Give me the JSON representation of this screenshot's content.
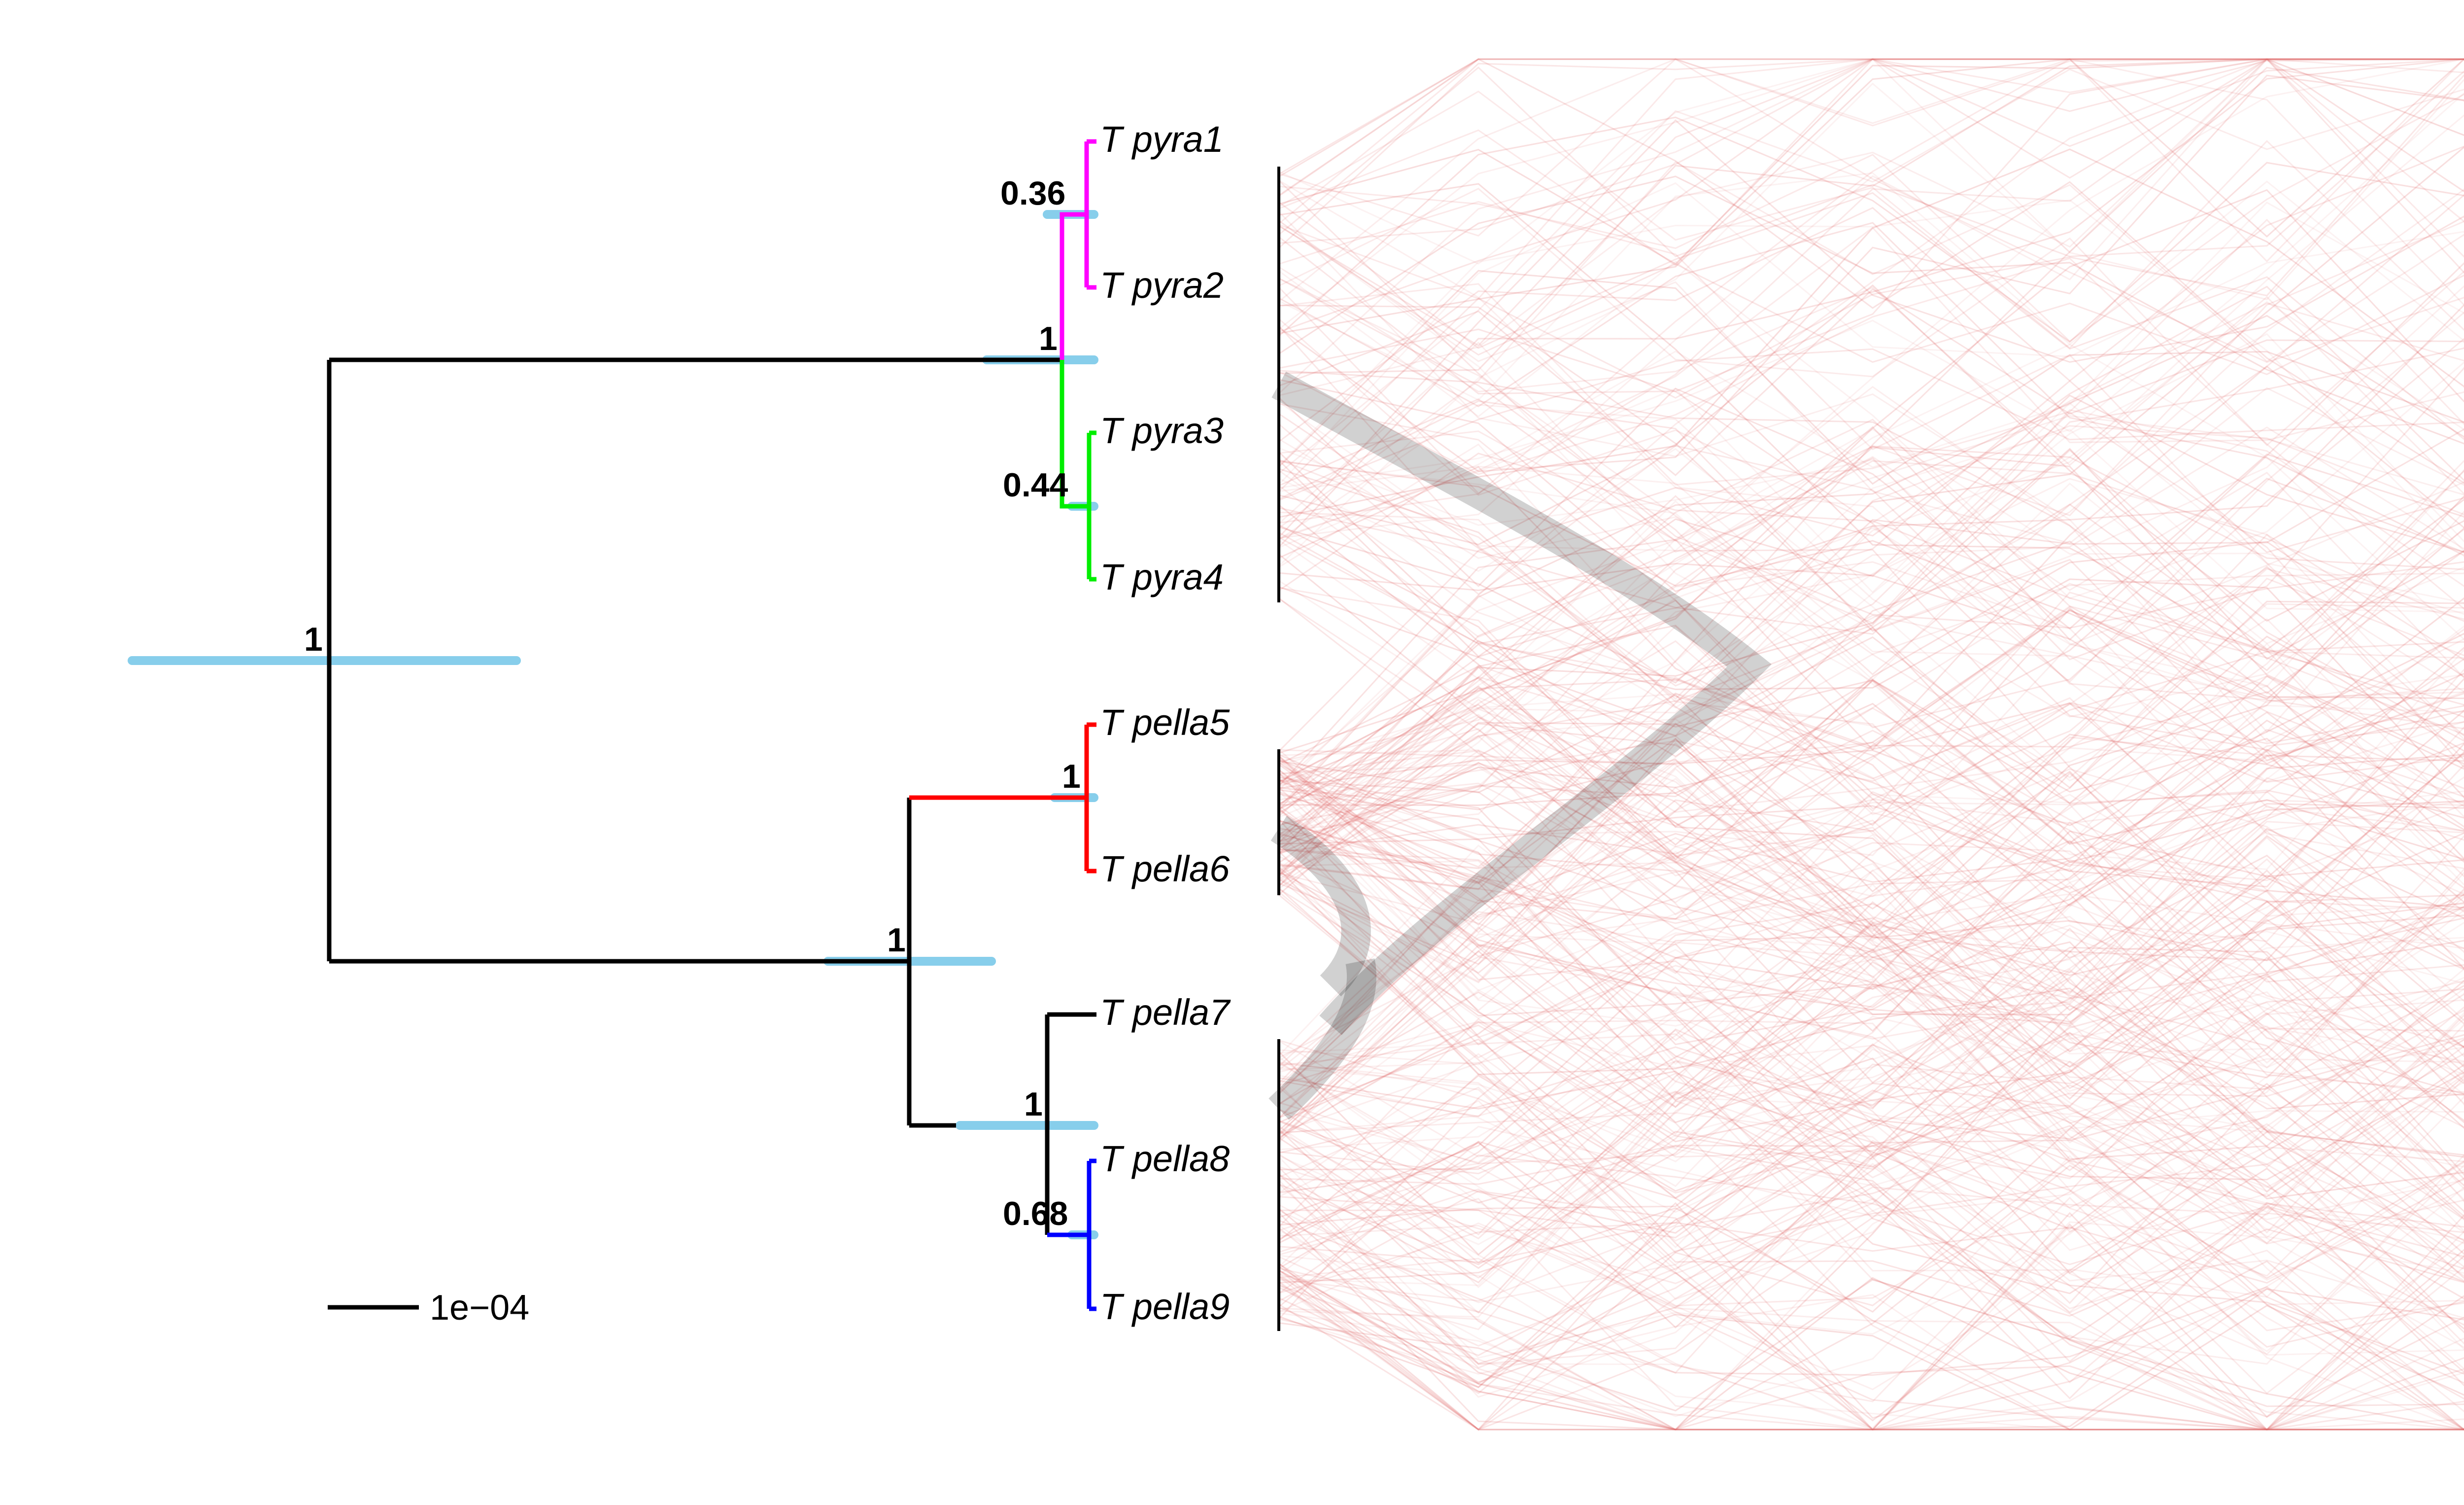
{
  "figure": {
    "type": "phylogenetic-tree-with-tanglegram",
    "colors": {
      "ci_bar": "#87ceeb",
      "branch_default": "#000000",
      "clade_pyra12": "#ff00ff",
      "clade_pyra34": "#00ee00",
      "clade_pella56": "#ff0000",
      "clade_pella89": "#0000ff",
      "tangle_line": "#e06666",
      "tangle_consensus": "#000000"
    }
  },
  "tips": [
    {
      "label": "T pyra1",
      "clade": "clade_pyra12"
    },
    {
      "label": "T pyra2",
      "clade": "clade_pyra12"
    },
    {
      "label": "T pyra3",
      "clade": "clade_pyra34"
    },
    {
      "label": "T pyra4",
      "clade": "clade_pyra34"
    },
    {
      "label": "T pella5",
      "clade": "clade_pella56"
    },
    {
      "label": "T pella6",
      "clade": "clade_pella56"
    },
    {
      "label": "T pella7",
      "clade": "branch_default"
    },
    {
      "label": "T pella8",
      "clade": "clade_pella89"
    },
    {
      "label": "T pella9",
      "clade": "clade_pella89"
    }
  ],
  "nodes": [
    {
      "id": "pyra12",
      "support": "0.36"
    },
    {
      "id": "pyra_all",
      "support": "1"
    },
    {
      "id": "pyra34",
      "support": "0.44"
    },
    {
      "id": "root",
      "support": "1"
    },
    {
      "id": "pella56",
      "support": "1"
    },
    {
      "id": "pella_all",
      "support": "1"
    },
    {
      "id": "pella789",
      "support": "1"
    },
    {
      "id": "pella89",
      "support": "0.68"
    }
  ],
  "scale_bar": {
    "label": "1e−04"
  }
}
